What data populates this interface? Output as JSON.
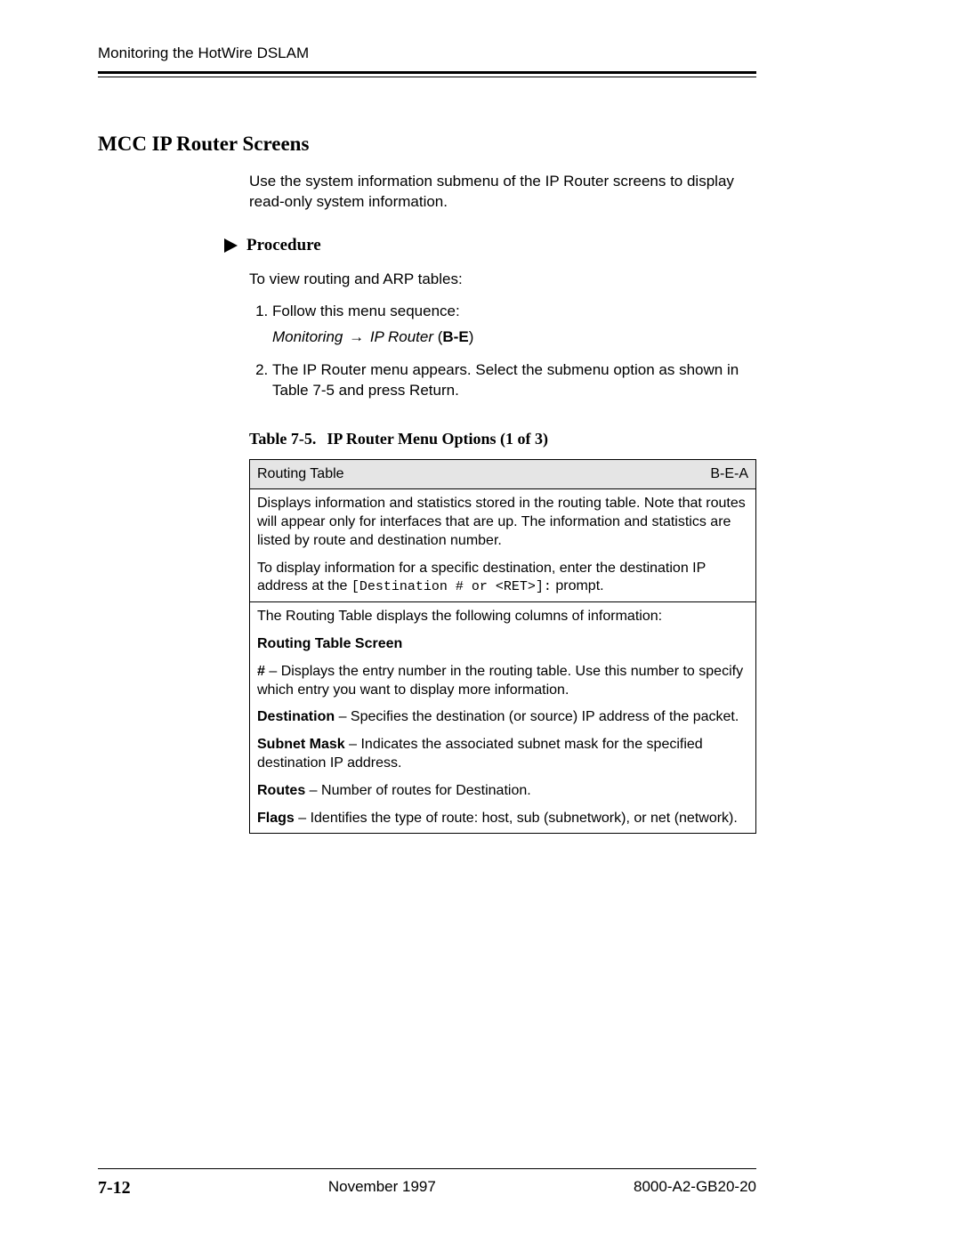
{
  "header": {
    "running_title": "Monitoring the HotWire DSLAM"
  },
  "section": {
    "title": "MCC IP Router Screens",
    "intro": "Use the system information submenu of the IP Router screens to display read-only system information."
  },
  "procedure": {
    "label": "Procedure",
    "intro": "To view routing and ARP tables:",
    "step1": "Follow this menu sequence:",
    "sequence": {
      "part1_italic": "Monitoring ",
      "arrow": "→",
      "part2_italic": " IP Router",
      "open": " (",
      "bold": "B-E",
      "close": ")"
    },
    "step2": "The IP Router menu appears. Select the submenu option as shown in Table 7-5 and press Return."
  },
  "table": {
    "caption_num": "Table 7-5.",
    "caption_text": "IP Router Menu Options (1 of 3)",
    "header_left": "Routing Table",
    "header_right": "B-E-A",
    "row1": "Displays information and statistics stored in the routing table. Note that routes will appear only for interfaces that are up. The information and statistics are listed by route and destination number.",
    "row2_pre": "To display information for a specific destination, enter the destination IP address at the ",
    "row2_mono": "[Destination # or <RET>]:",
    "row2_post": " prompt.",
    "row3_intro": "The Routing Table displays the following columns of information:",
    "row3_subhead": "Routing Table Screen",
    "col_hash_label": "#",
    "col_hash_text": " – Displays the entry number in the routing table. Use this number to specify which entry you want to display more information.",
    "col_dest_label": "Destination",
    "col_dest_text": " – Specifies the destination (or source) IP address of the packet.",
    "col_mask_label": "Subnet Mask",
    "col_mask_text": " – Indicates the associated subnet mask for the specified destination IP address.",
    "col_routes_label": "Routes",
    "col_routes_text": " – Number of routes for Destination.",
    "col_flags_label": "Flags",
    "col_flags_text": " – Identifies the type of route: host, sub (subnetwork), or net (network)."
  },
  "footer": {
    "page": "7-12",
    "date": "November 1997",
    "docnum": "8000-A2-GB20-20"
  }
}
